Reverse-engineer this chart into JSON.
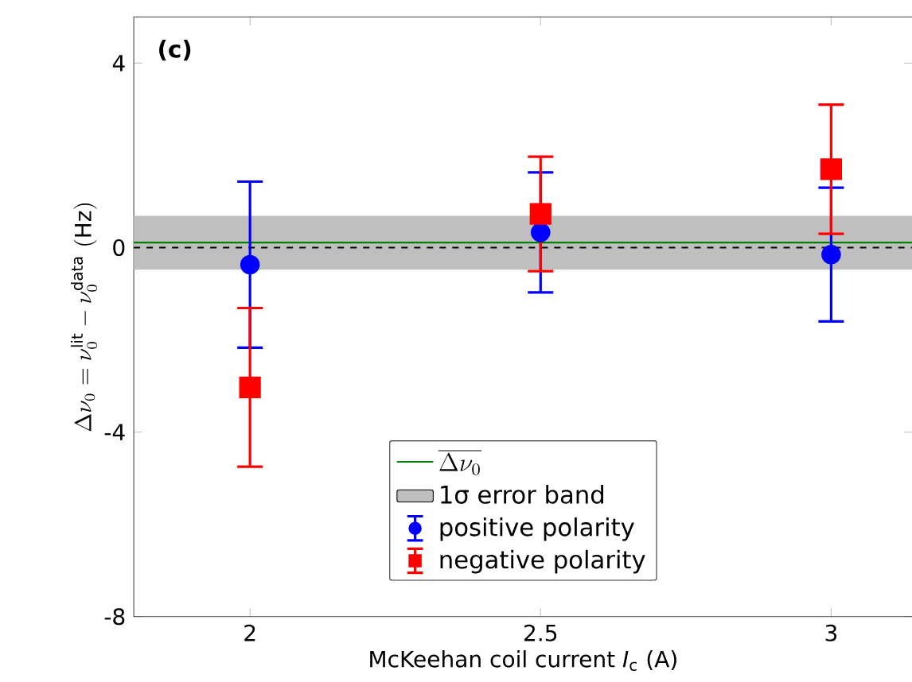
{
  "chart_data": {
    "type": "scatter",
    "xlabel": "McKeehan coil current *I*$_{c}$ (A)",
    "ylabel": "\\Delta\\nu_0 = \\nu_0^{\\mathrm{lit}} - \\nu_0^{\\mathrm{data}}\\ \\mathrm{(Hz)}",
    "annotations": [
      "**(c)**"
    ],
    "x": [
      2,
      2.5,
      3
    ],
    "series": [
      {
        "name": "positive polarity",
        "color": "#0000ff",
        "marker": "circle",
        "values": [
          -0.37,
          0.33,
          -0.15
        ],
        "errors": [
          1.8,
          1.3,
          1.45
        ]
      },
      {
        "name": "negative polarity",
        "color": "#ff0000",
        "marker": "square",
        "values": [
          -3.03,
          0.73,
          1.7
        ],
        "errors": [
          1.72,
          1.24,
          1.4
        ]
      }
    ],
    "ref_lines": [
      {
        "axis": "y",
        "value": 0.11,
        "label": "\\overline{\\Delta\\nu_0}",
        "color": "#008000"
      },
      {
        "axis": "y",
        "value": 0,
        "color": "#000000",
        "line_style": "dashed"
      }
    ],
    "bands": [
      {
        "axis": "y",
        "from": -0.48,
        "to": 0.69,
        "label": "1σ error band",
        "color": "#bfbfbf"
      }
    ],
    "xlim": [
      1.8,
      3.14
    ],
    "ylim": [
      -8,
      5
    ],
    "xticks": [
      2,
      2.5,
      3
    ],
    "yticks": [
      -8,
      -4,
      0,
      4
    ],
    "legend": "bottom"
  }
}
